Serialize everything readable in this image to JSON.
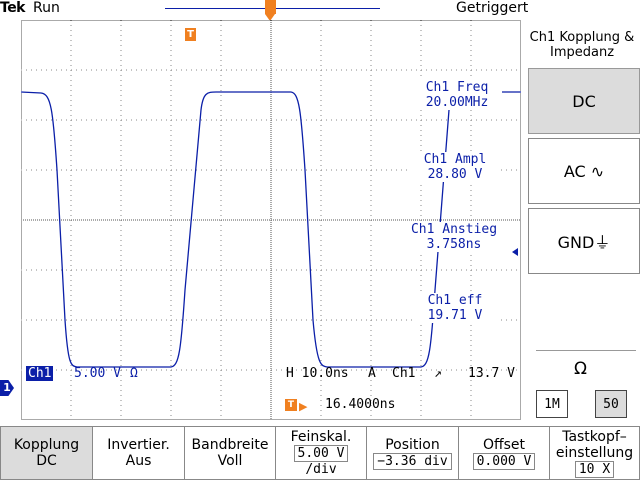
{
  "status": {
    "brand": "Tek",
    "run_state": "Run",
    "trigger_state": "Getriggert"
  },
  "markers": {
    "trigger_position": " ",
    "trigger_level": "T",
    "channel": "1",
    "trigger_delay_icon": "T"
  },
  "measurements": [
    {
      "label": "Ch1 Freq",
      "value": "20.00MHz"
    },
    {
      "label": "Ch1 Ampl",
      "value": "28.80 V"
    },
    {
      "label": "Ch1 Anstieg",
      "value": "3.758ns"
    },
    {
      "label": "Ch1 eff",
      "value": "19.71 V"
    }
  ],
  "channel_status": {
    "badge": "Ch1",
    "scale": "5.00 V",
    "impedance_symbol": "Ω",
    "timebase": "H 10.0ns",
    "trigger_mode": "A",
    "trigger_source": "Ch1",
    "trigger_slope": "↗",
    "trigger_level": "13.7 V"
  },
  "trigger_delay": "16.4000ns",
  "side_menu": {
    "title": "Ch1 Kopplung & Impedanz",
    "buttons": [
      {
        "label": "DC",
        "selected": true
      },
      {
        "label": "AC ∿",
        "selected": false
      },
      {
        "label": "GND⏚",
        "selected": false
      }
    ],
    "impedance_label": "Ω",
    "impedance_options": [
      "1M",
      "50"
    ]
  },
  "bottom_menu": [
    {
      "label": "Kopplung",
      "value": "DC"
    },
    {
      "label": "Invertier.",
      "value": "Aus"
    },
    {
      "label": "Bandbreite",
      "value": "Voll"
    },
    {
      "label": "Feinskal.",
      "value": "5.00 V",
      "value2": "/div"
    },
    {
      "label": "Position",
      "value": "−3.36 div"
    },
    {
      "label": "Offset",
      "value": "0.000 V"
    },
    {
      "label": "Tastkopf–",
      "label2": "einstellung",
      "value": "10 X"
    }
  ],
  "colors": {
    "trace": "#0b1fa8",
    "accent": "#f08020",
    "selected_bg": "#dcdcdc"
  }
}
